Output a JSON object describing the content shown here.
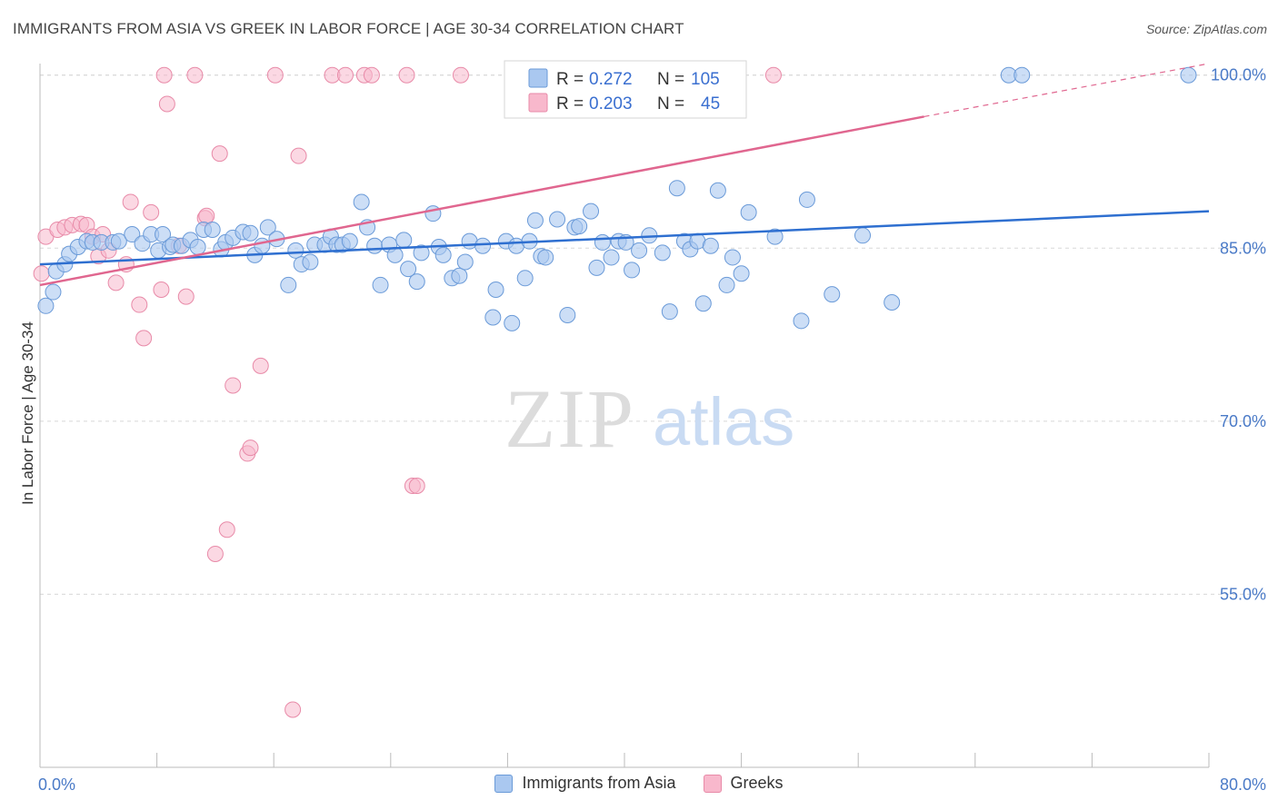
{
  "header": {
    "title": "IMMIGRANTS FROM ASIA VS GREEK IN LABOR FORCE | AGE 30-34 CORRELATION CHART",
    "source": "Source: ZipAtlas.com"
  },
  "watermark": {
    "zip": "ZIP",
    "atlas": "atlas"
  },
  "colors": {
    "blue_fill": "#aac8f0",
    "blue_stroke": "#6a9ad8",
    "blue_line": "#2e6fd0",
    "pink_fill": "#f8b8cc",
    "pink_stroke": "#e88aa8",
    "pink_line": "#e0668f",
    "tick_label": "#4a7ac7",
    "grid": "#d8d8d8"
  },
  "legend": {
    "rows": [
      {
        "r_label": "R =",
        "r_value": "0.272",
        "n_label": "N =",
        "n_value": "105"
      },
      {
        "r_label": "R =",
        "r_value": "0.203",
        "n_label": "N =",
        "n_value": "45"
      }
    ]
  },
  "bottom_legend": {
    "series_a": "Immigrants from Asia",
    "series_b": "Greeks"
  },
  "chart_data": {
    "type": "scatter",
    "title": "IMMIGRANTS FROM ASIA VS GREEK IN LABOR FORCE | AGE 30-34 CORRELATION CHART",
    "xlabel": "",
    "ylabel": "In Labor Force | Age 30-34",
    "xlim": [
      0,
      80
    ],
    "ylim": [
      40,
      101
    ],
    "x_tick_labels": [
      "0.0%",
      "80.0%"
    ],
    "y_ticks": [
      55,
      70,
      85,
      100
    ],
    "y_tick_labels": [
      "55.0%",
      "70.0%",
      "85.0%",
      "100.0%"
    ],
    "series": [
      {
        "name": "Immigrants from Asia",
        "r": 0.272,
        "n": 105,
        "trend": {
          "x0": 0,
          "y0": 83.6,
          "x1": 80,
          "y1": 88.2
        },
        "points": [
          [
            0.4,
            80.0
          ],
          [
            0.9,
            81.2
          ],
          [
            1.1,
            83.0
          ],
          [
            1.7,
            83.6
          ],
          [
            2.0,
            84.5
          ],
          [
            2.6,
            85.1
          ],
          [
            3.2,
            85.6
          ],
          [
            3.6,
            85.5
          ],
          [
            4.2,
            85.5
          ],
          [
            5.0,
            85.5
          ],
          [
            5.4,
            85.6
          ],
          [
            6.3,
            86.2
          ],
          [
            7.0,
            85.4
          ],
          [
            7.6,
            86.2
          ],
          [
            8.1,
            84.8
          ],
          [
            8.4,
            86.2
          ],
          [
            8.9,
            85.1
          ],
          [
            9.1,
            85.3
          ],
          [
            9.7,
            85.2
          ],
          [
            10.3,
            85.7
          ],
          [
            10.8,
            85.1
          ],
          [
            11.2,
            86.6
          ],
          [
            11.8,
            86.6
          ],
          [
            12.4,
            84.9
          ],
          [
            12.7,
            85.5
          ],
          [
            13.2,
            85.9
          ],
          [
            13.9,
            86.4
          ],
          [
            14.4,
            86.3
          ],
          [
            14.7,
            84.4
          ],
          [
            15.2,
            85.2
          ],
          [
            15.6,
            86.8
          ],
          [
            16.2,
            85.8
          ],
          [
            17.0,
            81.8
          ],
          [
            17.5,
            84.8
          ],
          [
            17.9,
            83.6
          ],
          [
            18.5,
            83.8
          ],
          [
            18.8,
            85.3
          ],
          [
            19.5,
            85.3
          ],
          [
            19.9,
            86.0
          ],
          [
            20.3,
            85.3
          ],
          [
            20.7,
            85.3
          ],
          [
            21.2,
            85.6
          ],
          [
            22.0,
            89.0
          ],
          [
            22.4,
            86.8
          ],
          [
            22.9,
            85.2
          ],
          [
            23.3,
            81.8
          ],
          [
            23.9,
            85.3
          ],
          [
            24.3,
            84.4
          ],
          [
            24.9,
            85.7
          ],
          [
            25.2,
            83.2
          ],
          [
            25.8,
            82.1
          ],
          [
            26.1,
            84.6
          ],
          [
            26.9,
            88.0
          ],
          [
            27.3,
            85.1
          ],
          [
            27.6,
            84.4
          ],
          [
            28.2,
            82.4
          ],
          [
            28.7,
            82.6
          ],
          [
            29.1,
            83.8
          ],
          [
            29.4,
            85.6
          ],
          [
            30.3,
            85.2
          ],
          [
            31.0,
            79.0
          ],
          [
            31.2,
            81.4
          ],
          [
            31.9,
            85.6
          ],
          [
            32.3,
            78.5
          ],
          [
            32.6,
            85.2
          ],
          [
            33.2,
            82.4
          ],
          [
            33.5,
            85.6
          ],
          [
            33.9,
            87.4
          ],
          [
            34.3,
            84.3
          ],
          [
            34.6,
            84.2
          ],
          [
            35.4,
            87.5
          ],
          [
            36.1,
            79.2
          ],
          [
            36.6,
            86.8
          ],
          [
            36.9,
            86.9
          ],
          [
            37.7,
            88.2
          ],
          [
            38.1,
            83.3
          ],
          [
            38.5,
            85.5
          ],
          [
            39.1,
            84.2
          ],
          [
            39.6,
            85.6
          ],
          [
            40.1,
            85.5
          ],
          [
            40.5,
            83.1
          ],
          [
            41.0,
            84.8
          ],
          [
            41.7,
            86.1
          ],
          [
            42.6,
            84.6
          ],
          [
            43.1,
            79.5
          ],
          [
            43.6,
            90.2
          ],
          [
            44.1,
            85.6
          ],
          [
            44.5,
            84.9
          ],
          [
            45.0,
            85.6
          ],
          [
            45.4,
            80.2
          ],
          [
            45.9,
            85.2
          ],
          [
            46.4,
            90.0
          ],
          [
            47.0,
            81.8
          ],
          [
            47.4,
            84.2
          ],
          [
            48.0,
            82.8
          ],
          [
            48.5,
            88.1
          ],
          [
            50.3,
            86.0
          ],
          [
            52.1,
            78.7
          ],
          [
            52.5,
            89.2
          ],
          [
            54.2,
            81.0
          ],
          [
            56.3,
            86.1
          ],
          [
            58.3,
            80.3
          ],
          [
            66.3,
            100.0
          ],
          [
            67.2,
            100.0
          ],
          [
            78.6,
            100.0
          ]
        ]
      },
      {
        "name": "Greeks",
        "r": 0.203,
        "n": 45,
        "trend": {
          "x0": 0,
          "y0": 81.8,
          "x1": 60.5,
          "y1": 96.4,
          "dash_to_x": 80,
          "dash_to_y": 101.0
        },
        "points": [
          [
            0.1,
            82.8
          ],
          [
            0.4,
            86.0
          ],
          [
            1.2,
            86.6
          ],
          [
            1.7,
            86.8
          ],
          [
            2.2,
            87.0
          ],
          [
            2.8,
            87.1
          ],
          [
            3.2,
            87.0
          ],
          [
            3.6,
            86.0
          ],
          [
            4.0,
            84.3
          ],
          [
            4.3,
            86.2
          ],
          [
            4.7,
            84.8
          ],
          [
            5.2,
            82.0
          ],
          [
            5.9,
            83.6
          ],
          [
            6.2,
            89.0
          ],
          [
            6.8,
            80.1
          ],
          [
            7.1,
            77.2
          ],
          [
            7.6,
            88.1
          ],
          [
            8.3,
            81.4
          ],
          [
            8.5,
            100.0
          ],
          [
            8.7,
            97.5
          ],
          [
            9.5,
            85.2
          ],
          [
            10.0,
            80.8
          ],
          [
            10.6,
            100.0
          ],
          [
            11.3,
            87.6
          ],
          [
            11.4,
            87.8
          ],
          [
            12.0,
            58.5
          ],
          [
            12.3,
            93.2
          ],
          [
            12.8,
            60.6
          ],
          [
            13.2,
            73.1
          ],
          [
            14.2,
            67.2
          ],
          [
            14.4,
            67.7
          ],
          [
            15.1,
            74.8
          ],
          [
            16.1,
            100.0
          ],
          [
            17.7,
            93.0
          ],
          [
            20.0,
            100.0
          ],
          [
            20.9,
            100.0
          ],
          [
            22.2,
            100.0
          ],
          [
            22.7,
            100.0
          ],
          [
            25.1,
            100.0
          ],
          [
            25.5,
            64.4
          ],
          [
            25.8,
            64.4
          ],
          [
            28.8,
            100.0
          ],
          [
            32.6,
            100.0
          ],
          [
            50.2,
            100.0
          ],
          [
            17.3,
            45.0
          ]
        ]
      }
    ]
  }
}
